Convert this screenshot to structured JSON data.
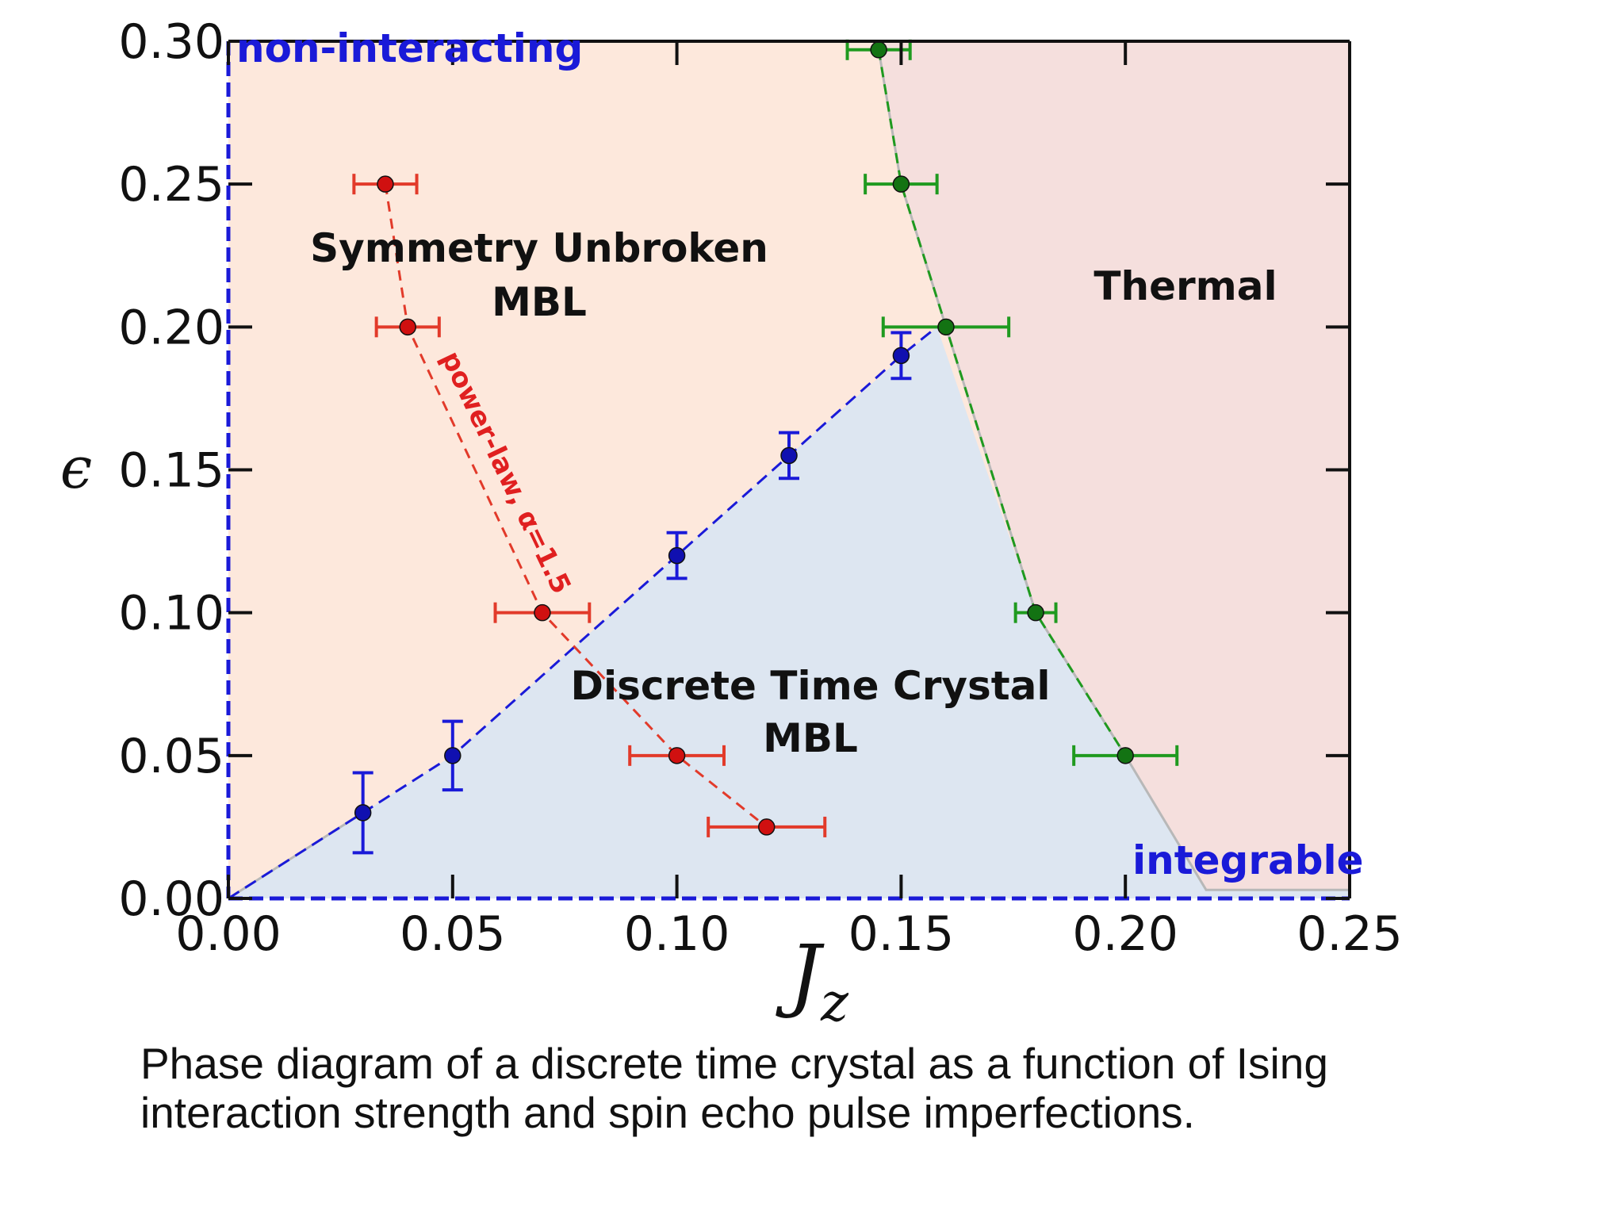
{
  "chart_data": {
    "type": "scatter",
    "title": "",
    "xlabel": "J",
    "xlabel_sub": "z",
    "ylabel": "ϵ",
    "xlim": [
      0.0,
      0.25
    ],
    "ylim": [
      0.0,
      0.3
    ],
    "xticks": [
      "0.00",
      "0.05",
      "0.10",
      "0.15",
      "0.20",
      "0.25"
    ],
    "yticks": [
      "0.00",
      "0.05",
      "0.10",
      "0.15",
      "0.20",
      "0.25",
      "0.30"
    ],
    "grid": false,
    "colors": {
      "mbl_region": "#fde8dc",
      "thermal_region": "#f5dfdd",
      "dtc_region": "#dde6f1",
      "blue_series": "#1a1ad8",
      "blue_point": "#1010b0",
      "red_series": "#e23a2a",
      "red_point": "#d01010",
      "green_series": "#1f9a1f",
      "green_point": "#137313",
      "axis": "#111111"
    },
    "series": [
      {
        "color_role": "blue",
        "errors": "vertical",
        "points": [
          {
            "x": 0.03,
            "y": 0.03,
            "err": 0.014
          },
          {
            "x": 0.05,
            "y": 0.05,
            "err": 0.012
          },
          {
            "x": 0.1,
            "y": 0.12,
            "err": 0.008
          },
          {
            "x": 0.125,
            "y": 0.155,
            "err": 0.008
          },
          {
            "x": 0.15,
            "y": 0.19,
            "err": 0.008
          }
        ]
      },
      {
        "color_role": "red",
        "errors": "horizontal",
        "points": [
          {
            "x": 0.035,
            "y": 0.25,
            "err": 0.007
          },
          {
            "x": 0.04,
            "y": 0.2,
            "err": 0.007
          },
          {
            "x": 0.07,
            "y": 0.1,
            "err": 0.0105
          },
          {
            "x": 0.1,
            "y": 0.05,
            "err": 0.0105
          },
          {
            "x": 0.12,
            "y": 0.025,
            "err": 0.013
          }
        ]
      },
      {
        "color_role": "green",
        "errors": "horizontal",
        "points": [
          {
            "x": 0.145,
            "y": 0.297,
            "err": 0.007
          },
          {
            "x": 0.15,
            "y": 0.25,
            "err": 0.008
          },
          {
            "x": 0.16,
            "y": 0.2,
            "err": 0.014
          },
          {
            "x": 0.18,
            "y": 0.1,
            "err": 0.0045
          },
          {
            "x": 0.2,
            "y": 0.05,
            "err": 0.0115
          }
        ]
      }
    ],
    "region_boundaries": {
      "dtc": [
        [
          0.0,
          0.0
        ],
        [
          0.03,
          0.03
        ],
        [
          0.05,
          0.05
        ],
        [
          0.1,
          0.12
        ],
        [
          0.125,
          0.155
        ],
        [
          0.158,
          0.2
        ],
        [
          0.18,
          0.1
        ],
        [
          0.2,
          0.05
        ],
        [
          0.218,
          0.003
        ],
        [
          0.25,
          0.003
        ],
        [
          0.25,
          0.0
        ]
      ],
      "thermal": [
        [
          0.145,
          0.3
        ],
        [
          0.15,
          0.25
        ],
        [
          0.16,
          0.2
        ],
        [
          0.18,
          0.1
        ],
        [
          0.2,
          0.05
        ],
        [
          0.218,
          0.003
        ],
        [
          0.25,
          0.003
        ],
        [
          0.25,
          0.3
        ]
      ],
      "thermal_line": [
        [
          0.145,
          0.297
        ],
        [
          0.15,
          0.25
        ],
        [
          0.16,
          0.2
        ],
        [
          0.18,
          0.1
        ],
        [
          0.2,
          0.05
        ],
        [
          0.218,
          0.003
        ],
        [
          0.25,
          0.003
        ]
      ]
    },
    "annotations": {
      "non_interacting": "non-interacting",
      "integrable": "integrable",
      "symmetry_unbroken_line1": "Symmetry Unbroken",
      "symmetry_unbroken_line2": "MBL",
      "thermal": "Thermal",
      "dtc_line1": "Discrete Time Crystal",
      "dtc_line2": "MBL",
      "power_law": "power-law, α=1.5"
    }
  },
  "caption": "Phase diagram of a discrete time crystal as a function of Ising interaction strength and spin echo pulse imperfections."
}
